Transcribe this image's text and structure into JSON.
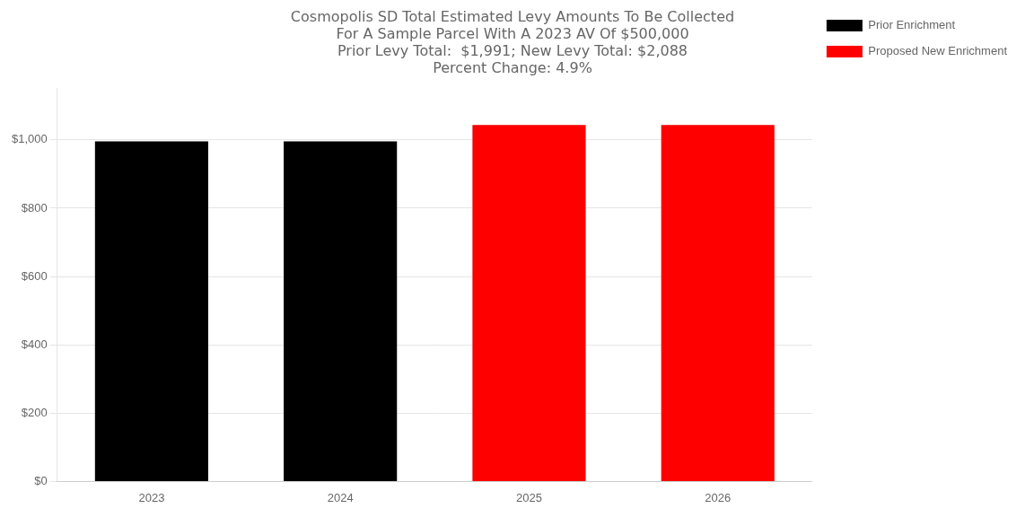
{
  "chart_data": {
    "type": "bar",
    "title": [
      "Cosmopolis SD Total Estimated Levy Amounts To Be Collected",
      "For A Sample Parcel With A 2023 AV Of $500,000",
      "Prior Levy Total:  $1,991; New Levy Total: $2,088",
      "Percent Change: 4.9%"
    ],
    "categories": [
      "2023",
      "2024",
      "2025",
      "2026"
    ],
    "series": [
      {
        "name": "Prior Enrichment",
        "color": "#000000",
        "values": [
          995.5,
          995.5,
          null,
          null
        ]
      },
      {
        "name": "Proposed New Enrichment",
        "color": "#ff0000",
        "values": [
          null,
          null,
          1044,
          1044
        ]
      }
    ],
    "ylim": [
      0,
      1150
    ],
    "yticks": [
      {
        "value": 0,
        "label": "$0"
      },
      {
        "value": 200,
        "label": "$200"
      },
      {
        "value": 400,
        "label": "$400"
      },
      {
        "value": 600,
        "label": "$600"
      },
      {
        "value": 800,
        "label": "$800"
      },
      {
        "value": 1000,
        "label": "$1,000"
      }
    ],
    "grid": true,
    "legend": "right"
  }
}
